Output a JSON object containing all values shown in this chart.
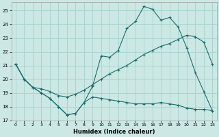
{
  "xlabel": "Humidex (Indice chaleur)",
  "bg_color": "#cce8e4",
  "grid_color": "#aad4d0",
  "line_color": "#1a6b6b",
  "xlim": [
    -0.5,
    23.5
  ],
  "ylim": [
    17,
    25.6
  ],
  "yticks": [
    17,
    18,
    19,
    20,
    21,
    22,
    23,
    24,
    25
  ],
  "xticks": [
    0,
    1,
    2,
    3,
    4,
    5,
    6,
    7,
    8,
    9,
    10,
    11,
    12,
    13,
    14,
    15,
    16,
    17,
    18,
    19,
    20,
    21,
    22,
    23
  ],
  "line1_x": [
    0,
    1,
    2,
    3,
    4,
    5,
    6,
    7,
    8,
    9,
    10,
    11,
    12,
    13,
    14,
    15,
    16,
    17,
    18,
    19,
    20,
    21,
    22,
    23
  ],
  "line1_y": [
    21.1,
    20.0,
    19.4,
    19.0,
    18.6,
    18.0,
    17.4,
    17.5,
    18.3,
    19.5,
    21.7,
    21.6,
    22.1,
    23.7,
    24.2,
    25.3,
    25.1,
    24.3,
    24.5,
    23.8,
    22.3,
    20.5,
    19.1,
    17.7
  ],
  "line2_x": [
    0,
    1,
    2,
    3,
    4,
    5,
    6,
    7,
    8,
    9,
    10,
    11,
    12,
    13,
    14,
    15,
    16,
    17,
    18,
    19,
    20,
    21,
    22,
    23
  ],
  "line2_y": [
    21.1,
    20.0,
    19.4,
    19.3,
    19.1,
    18.8,
    18.7,
    18.9,
    19.2,
    19.6,
    20.0,
    20.4,
    20.7,
    21.0,
    21.4,
    21.8,
    22.1,
    22.4,
    22.6,
    22.9,
    23.2,
    23.1,
    22.7,
    21.1
  ],
  "line3_x": [
    0,
    1,
    2,
    3,
    4,
    5,
    6,
    7,
    8,
    9,
    10,
    11,
    12,
    13,
    14,
    15,
    16,
    17,
    18,
    19,
    20,
    21,
    22,
    23
  ],
  "line3_y": [
    21.1,
    20.0,
    19.4,
    19.0,
    18.6,
    18.0,
    17.4,
    17.5,
    18.3,
    18.7,
    18.6,
    18.5,
    18.4,
    18.3,
    18.2,
    18.2,
    18.2,
    18.3,
    18.2,
    18.1,
    17.9,
    17.8,
    17.8,
    17.7
  ]
}
